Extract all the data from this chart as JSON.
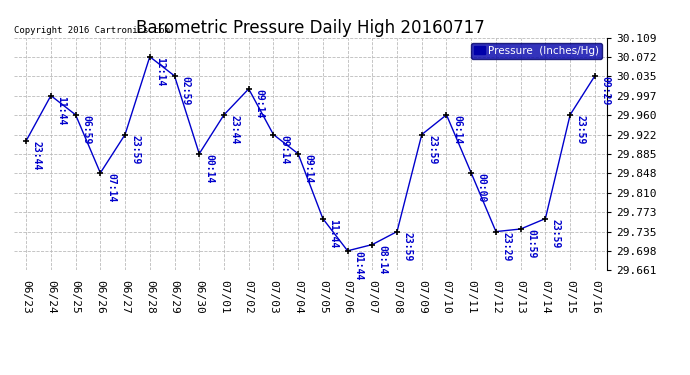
{
  "title": "Barometric Pressure Daily High 20160717",
  "copyright": "Copyright 2016 Cartronics.com",
  "legend_label": "Pressure  (Inches/Hg)",
  "x_labels": [
    "06/23",
    "06/24",
    "06/25",
    "06/26",
    "06/27",
    "06/28",
    "06/29",
    "06/30",
    "07/01",
    "07/02",
    "07/03",
    "07/04",
    "07/05",
    "07/06",
    "07/07",
    "07/08",
    "07/09",
    "07/10",
    "07/11",
    "07/12",
    "07/13",
    "07/14",
    "07/15",
    "07/16"
  ],
  "y_values": [
    29.91,
    29.997,
    29.96,
    29.848,
    29.922,
    30.072,
    30.035,
    29.885,
    29.96,
    30.01,
    29.922,
    29.885,
    29.76,
    29.698,
    29.71,
    29.735,
    29.922,
    29.96,
    29.848,
    29.735,
    29.74,
    29.76,
    29.96,
    30.035
  ],
  "point_labels": [
    "23:44",
    "11:44",
    "06:59",
    "07:14",
    "23:59",
    "12:14",
    "02:59",
    "00:14",
    "23:44",
    "09:14",
    "09:14",
    "09:14",
    "11:44",
    "01:44",
    "08:14",
    "23:59",
    "23:59",
    "06:14",
    "00:00",
    "23:29",
    "01:59",
    "23:59",
    "23:59",
    "09:29"
  ],
  "ylim_min": 29.661,
  "ylim_max": 30.109,
  "yticks": [
    29.661,
    29.698,
    29.735,
    29.773,
    29.81,
    29.848,
    29.885,
    29.922,
    29.96,
    29.997,
    30.035,
    30.072,
    30.109
  ],
  "line_color": "#0000cc",
  "bg_color": "#ffffff",
  "grid_color": "#bbbbbb",
  "title_fontsize": 12,
  "tick_fontsize": 8,
  "annotation_fontsize": 7,
  "legend_bg": "#0000aa",
  "legend_fg": "#ffffff",
  "fig_width": 6.9,
  "fig_height": 3.75,
  "dpi": 100
}
